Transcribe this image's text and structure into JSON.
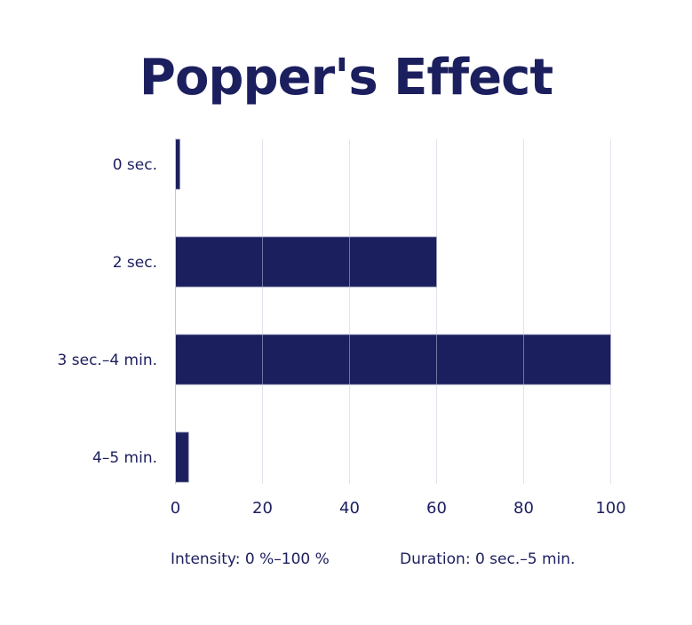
{
  "chart_data": {
    "type": "bar",
    "orientation": "horizontal",
    "title": "Popper's Effect",
    "categories": [
      "0 sec.",
      "2 sec.",
      "3 sec.–4 min.",
      "4–5 min."
    ],
    "values": [
      1,
      60,
      100,
      3
    ],
    "xlim": [
      0,
      100
    ],
    "xticks": [
      0,
      20,
      40,
      60,
      80,
      100
    ],
    "grid": true,
    "bar_color": "#1c1f5e",
    "annotations": [
      "Intensity: 0 %–100 %",
      "Duration: 0 sec.–5 min."
    ]
  }
}
